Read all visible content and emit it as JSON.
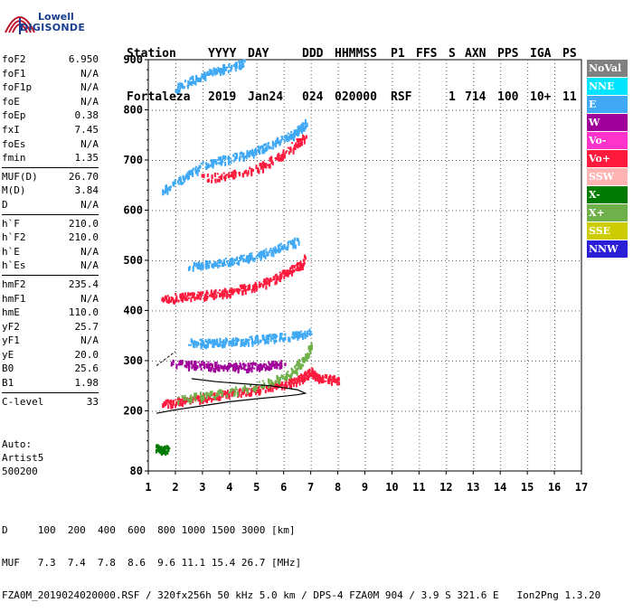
{
  "logo": {
    "line1": "Lowell",
    "line2": "DIGISONDE"
  },
  "header": {
    "labels": [
      "Station",
      "YYYY",
      "DAY",
      "DDD",
      "HHMMSS",
      "P1",
      "FFS",
      "S",
      "AXN",
      "PPS",
      "IGA",
      "PS"
    ],
    "values": [
      "Fortaleza",
      "2019",
      "Jan24",
      "024",
      "020000",
      "RSF",
      "",
      "1",
      "714",
      "100",
      "10+",
      "11"
    ]
  },
  "params": {
    "group1": [
      {
        "k": "foF2",
        "v": "6.950"
      },
      {
        "k": "foF1",
        "v": "N/A"
      },
      {
        "k": "foF1p",
        "v": "N/A"
      },
      {
        "k": "foE",
        "v": "N/A"
      },
      {
        "k": "foEp",
        "v": "0.38"
      },
      {
        "k": "fxI",
        "v": "7.45"
      },
      {
        "k": "foEs",
        "v": "N/A"
      },
      {
        "k": "fmin",
        "v": "1.35"
      }
    ],
    "group2": [
      {
        "k": "MUF(D)",
        "v": "26.70"
      },
      {
        "k": "M(D)",
        "v": "3.84"
      },
      {
        "k": "D",
        "v": "N/A"
      }
    ],
    "group3": [
      {
        "k": "h`F",
        "v": "210.0"
      },
      {
        "k": "h`F2",
        "v": "210.0"
      },
      {
        "k": "h`E",
        "v": "N/A"
      },
      {
        "k": "h`Es",
        "v": "N/A"
      }
    ],
    "group4": [
      {
        "k": "hmF2",
        "v": "235.4"
      },
      {
        "k": "hmF1",
        "v": "N/A"
      },
      {
        "k": "hmE",
        "v": "110.0"
      },
      {
        "k": "yF2",
        "v": "25.7"
      },
      {
        "k": "yF1",
        "v": "N/A"
      },
      {
        "k": "yE",
        "v": "20.0"
      },
      {
        "k": "B0",
        "v": "25.6"
      },
      {
        "k": "B1",
        "v": "1.98"
      }
    ],
    "group5": [
      {
        "k": "C-level",
        "v": "33"
      }
    ]
  },
  "auto": {
    "line1": "Auto:",
    "line2": "Artist5",
    "line3": "500200"
  },
  "legend": [
    {
      "label": "NoVal",
      "color": "#808080"
    },
    {
      "label": "NNE",
      "color": "#00e5ff"
    },
    {
      "label": "E",
      "color": "#3fa9f5"
    },
    {
      "label": "W",
      "color": "#a0009a"
    },
    {
      "label": "Vo-",
      "color": "#ff33cc"
    },
    {
      "label": "Vo+",
      "color": "#ff1a3d"
    },
    {
      "label": "SSW",
      "color": "#ffb3b3"
    },
    {
      "label": "X-",
      "color": "#007a00"
    },
    {
      "label": "X+",
      "color": "#6fb04a"
    },
    {
      "label": "SSE",
      "color": "#cccc00"
    },
    {
      "label": "NNW",
      "color": "#2a1fd6"
    }
  ],
  "footer": {
    "line1": "D     100  200  400  600  800 1000 1500 3000 [km]",
    "line2": "MUF   7.3  7.4  7.8  8.6  9.6 11.1 15.4 26.7 [MHz]",
    "line3": "FZA0M_2019024020000.RSF / 320fx256h 50 kHz 5.0 km / DPS-4 FZA0M 904 / 3.9 S 321.6 E   Ion2Png 1.3.20"
  },
  "chart_data": {
    "type": "scatter",
    "xlim": [
      1,
      17
    ],
    "ylim": [
      80,
      900
    ],
    "x_ticks": [
      "1",
      "2",
      "3",
      "4",
      "5",
      "6",
      "7",
      "8",
      "9",
      "10",
      "11",
      "12",
      "13",
      "14",
      "15",
      "16",
      "17"
    ],
    "y_ticks": [
      "80",
      "200",
      "300",
      "400",
      "500",
      "600",
      "700",
      "800",
      "900"
    ],
    "grid": true,
    "legend_position": "right",
    "series": [
      {
        "name": "Vo+",
        "trace": "F2 ordinary trace",
        "color": "#ff1a3d",
        "points": [
          [
            1.5,
            215
          ],
          [
            2.0,
            220
          ],
          [
            2.5,
            224
          ],
          [
            3.0,
            228
          ],
          [
            3.5,
            232
          ],
          [
            4.0,
            236
          ],
          [
            4.5,
            240
          ],
          [
            5.0,
            244
          ],
          [
            5.5,
            250
          ],
          [
            6.0,
            256
          ],
          [
            6.5,
            263
          ],
          [
            6.8,
            272
          ],
          [
            7.0,
            280
          ],
          [
            7.2,
            268
          ],
          [
            7.6,
            266
          ],
          [
            8.0,
            264
          ]
        ]
      },
      {
        "name": "X+",
        "trace": "F2 extraordinary trace",
        "color": "#6fb04a",
        "points": [
          [
            2.0,
            225
          ],
          [
            3.0,
            232
          ],
          [
            4.0,
            240
          ],
          [
            5.0,
            252
          ],
          [
            6.0,
            268
          ],
          [
            6.5,
            290
          ],
          [
            6.8,
            310
          ],
          [
            7.0,
            330
          ]
        ]
      },
      {
        "name": "W",
        "trace": "spread echo band",
        "color": "#a0009a",
        "points": [
          [
            1.8,
            296
          ],
          [
            2.5,
            294
          ],
          [
            3.0,
            292
          ],
          [
            3.5,
            291
          ],
          [
            4.0,
            290
          ],
          [
            4.5,
            290
          ],
          [
            5.0,
            291
          ],
          [
            5.5,
            293
          ],
          [
            6.0,
            296
          ]
        ]
      },
      {
        "name": "E",
        "trace": "spread echo band",
        "color": "#3fa9f5",
        "points": [
          [
            2.5,
            338
          ],
          [
            3.0,
            337
          ],
          [
            3.5,
            338
          ],
          [
            4.0,
            340
          ],
          [
            4.5,
            342
          ],
          [
            5.0,
            344
          ],
          [
            5.5,
            347
          ],
          [
            6.0,
            350
          ],
          [
            6.5,
            354
          ],
          [
            7.0,
            358
          ]
        ]
      },
      {
        "name": "Vo+",
        "trace": "2nd hop",
        "color": "#ff1a3d",
        "points": [
          [
            1.5,
            425
          ],
          [
            2.0,
            428
          ],
          [
            2.5,
            430
          ],
          [
            3.0,
            433
          ],
          [
            3.5,
            436
          ],
          [
            4.0,
            440
          ],
          [
            4.5,
            446
          ],
          [
            5.0,
            452
          ],
          [
            5.5,
            462
          ],
          [
            6.0,
            474
          ],
          [
            6.5,
            490
          ],
          [
            6.8,
            505
          ]
        ]
      },
      {
        "name": "E",
        "trace": "2nd hop",
        "color": "#3fa9f5",
        "points": [
          [
            2.5,
            490
          ],
          [
            3.0,
            493
          ],
          [
            3.5,
            496
          ],
          [
            4.0,
            500
          ],
          [
            4.5,
            505
          ],
          [
            5.0,
            512
          ],
          [
            5.5,
            520
          ],
          [
            6.0,
            530
          ],
          [
            6.5,
            540
          ]
        ]
      },
      {
        "name": "E",
        "trace": "3rd hop",
        "color": "#3fa9f5",
        "points": [
          [
            1.5,
            640
          ],
          [
            2.0,
            655
          ],
          [
            2.5,
            675
          ],
          [
            3.0,
            690
          ],
          [
            3.5,
            700
          ],
          [
            4.0,
            705
          ],
          [
            4.5,
            712
          ],
          [
            5.0,
            720
          ],
          [
            5.5,
            732
          ],
          [
            6.0,
            745
          ],
          [
            6.5,
            760
          ],
          [
            6.8,
            775
          ]
        ]
      },
      {
        "name": "Vo+",
        "trace": "3rd hop",
        "color": "#ff1a3d",
        "points": [
          [
            3.0,
            665
          ],
          [
            4.0,
            672
          ],
          [
            5.0,
            685
          ],
          [
            5.5,
            700
          ],
          [
            6.0,
            715
          ],
          [
            6.5,
            735
          ],
          [
            6.8,
            750
          ]
        ]
      },
      {
        "name": "E",
        "trace": "4th hop",
        "color": "#3fa9f5",
        "points": [
          [
            2.0,
            845
          ],
          [
            2.5,
            858
          ],
          [
            3.0,
            870
          ],
          [
            3.5,
            880
          ],
          [
            4.0,
            888
          ],
          [
            4.5,
            895
          ]
        ]
      },
      {
        "name": "X-",
        "trace": "low echo",
        "color": "#007a00",
        "points": [
          [
            1.3,
            127
          ],
          [
            1.5,
            126
          ],
          [
            1.7,
            125
          ]
        ]
      }
    ],
    "profile": {
      "name": "true height profile",
      "points": [
        [
          1.3,
          195
        ],
        [
          2.0,
          202
        ],
        [
          3.0,
          210
        ],
        [
          4.0,
          218
        ],
        [
          5.0,
          224
        ],
        [
          6.0,
          229
        ],
        [
          6.5,
          232
        ],
        [
          6.8,
          235
        ],
        [
          6.5,
          242
        ],
        [
          5.5,
          250
        ],
        [
          4.5,
          254
        ],
        [
          3.5,
          258
        ],
        [
          2.6,
          264
        ]
      ]
    },
    "profile_upper": {
      "points": [
        [
          1.3,
          290
        ],
        [
          2.0,
          318
        ]
      ]
    }
  }
}
